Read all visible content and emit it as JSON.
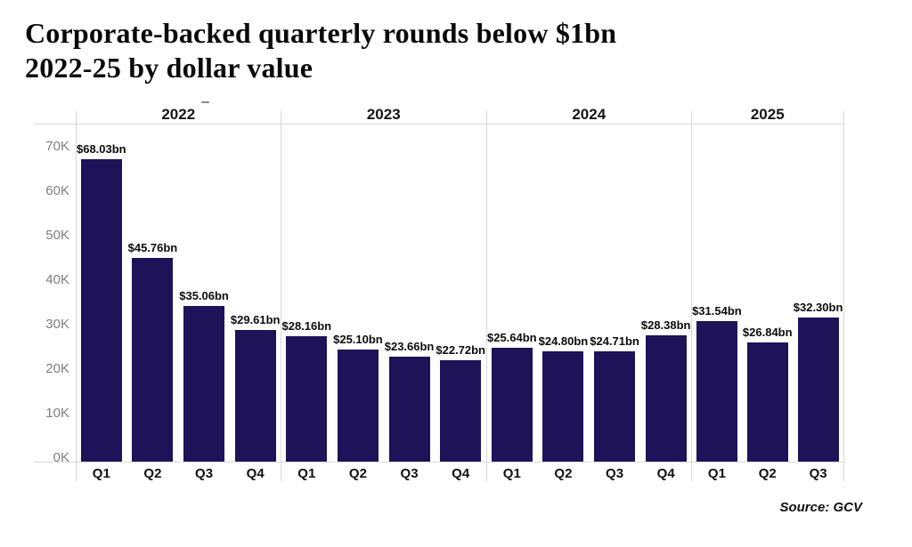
{
  "title": {
    "line1": "Corporate-backed quarterly rounds below $1bn",
    "line2": "2022-25 by dollar value"
  },
  "source_label": "Source: GCV",
  "colors": {
    "bar": "#1e1358",
    "grid_line": "#d9d9d9",
    "tick_text": "#7f7f7f"
  },
  "chart_data": {
    "type": "bar",
    "title": "Corporate-backed quarterly rounds below $1bn 2022-25 by dollar value",
    "xlabel": "",
    "ylabel": "",
    "ylim_k": [
      0,
      70
    ],
    "grid": "none",
    "legend": "none",
    "y_axis": {
      "tick_values": [
        0,
        10,
        20,
        30,
        40,
        50,
        60,
        70
      ],
      "tick_labels": [
        "0K",
        "10K",
        "20K",
        "30K",
        "40K",
        "50K",
        "60K",
        "70K"
      ]
    },
    "groups": [
      {
        "year": "2022",
        "quarters": [
          "Q1",
          "Q2",
          "Q3",
          "Q4"
        ],
        "values_bn": [
          68.03,
          45.76,
          35.06,
          29.61
        ],
        "value_labels": [
          "$68.03bn",
          "$45.76bn",
          "$35.06bn",
          "$29.61bn"
        ]
      },
      {
        "year": "2023",
        "quarters": [
          "Q1",
          "Q2",
          "Q3",
          "Q4"
        ],
        "values_bn": [
          28.16,
          25.1,
          23.66,
          22.72
        ],
        "value_labels": [
          "$28.16bn",
          "$25.10bn",
          "$23.66bn",
          "$22.72bn"
        ]
      },
      {
        "year": "2024",
        "quarters": [
          "Q1",
          "Q2",
          "Q3",
          "Q4"
        ],
        "values_bn": [
          25.64,
          24.8,
          24.71,
          28.38
        ],
        "value_labels": [
          "$25.64bn",
          "$24.80bn",
          "$24.71bn",
          "$28.38bn"
        ]
      },
      {
        "year": "2025",
        "quarters": [
          "Q1",
          "Q2",
          "Q3"
        ],
        "values_bn": [
          31.54,
          26.84,
          32.3
        ],
        "value_labels": [
          "$31.54bn",
          "$26.84bn",
          "$32.30bn"
        ]
      }
    ]
  }
}
